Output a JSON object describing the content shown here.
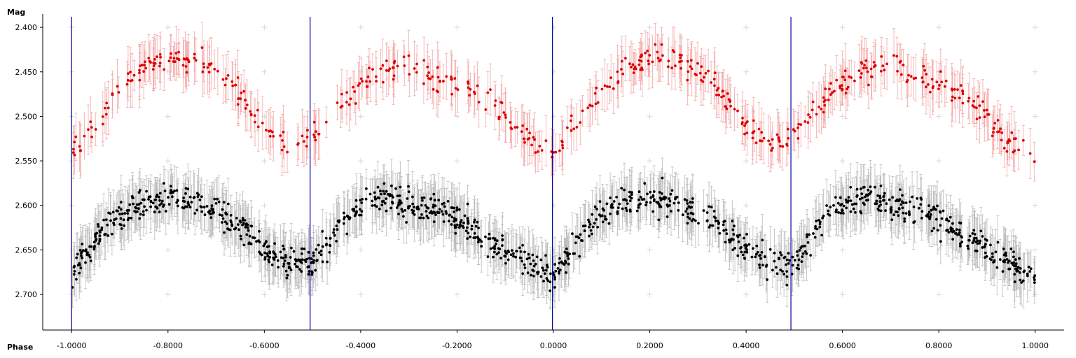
{
  "chart_data": {
    "type": "scatter",
    "xlabel": "Phase",
    "ylabel": "Mag",
    "xlim": [
      -1.06,
      1.06
    ],
    "ylim": [
      2.385,
      2.74
    ],
    "y_inverted": true,
    "x_ticks": [
      "-1.0000",
      "-0.8000",
      "-0.6000",
      "-0.4000",
      "-0.2000",
      "0.0000",
      "0.2000",
      "0.4000",
      "0.6000",
      "0.8000",
      "1.0000"
    ],
    "x_tick_values": [
      -1.0,
      -0.8,
      -0.6,
      -0.4,
      -0.2,
      0.0,
      0.2,
      0.4,
      0.6,
      0.8,
      1.0
    ],
    "y_ticks": [
      "2.400",
      "2.450",
      "2.500",
      "2.550",
      "2.600",
      "2.650",
      "2.700"
    ],
    "y_tick_values": [
      2.4,
      2.45,
      2.5,
      2.55,
      2.6,
      2.65,
      2.7
    ],
    "vertical_lines": [
      -1.0,
      -0.505,
      -0.002,
      0.493
    ],
    "grid_markers": true,
    "series": [
      {
        "color": "#e00000",
        "errorbar_color": "#f4a8a8",
        "error": 0.028,
        "curve": {
          "x": [
            -1.0,
            -0.95,
            -0.9,
            -0.85,
            -0.8,
            -0.75,
            -0.7,
            -0.65,
            -0.6,
            -0.55,
            -0.5,
            -0.45,
            -0.4,
            -0.35,
            -0.3,
            -0.25,
            -0.2,
            -0.15,
            -0.1,
            -0.05,
            0.0,
            0.05,
            0.1,
            0.15,
            0.2,
            0.25,
            0.3,
            0.35,
            0.4,
            0.45,
            0.5,
            0.55,
            0.6,
            0.65,
            0.7,
            0.75,
            0.8,
            0.85,
            0.9,
            0.95,
            1.0
          ],
          "y": [
            2.545,
            2.505,
            2.47,
            2.443,
            2.435,
            2.435,
            2.448,
            2.475,
            2.513,
            2.535,
            2.52,
            2.487,
            2.463,
            2.448,
            2.443,
            2.455,
            2.465,
            2.475,
            2.5,
            2.53,
            2.545,
            2.505,
            2.47,
            2.443,
            2.435,
            2.435,
            2.448,
            2.475,
            2.513,
            2.535,
            2.52,
            2.487,
            2.463,
            2.448,
            2.443,
            2.455,
            2.465,
            2.475,
            2.5,
            2.53,
            2.545
          ]
        },
        "points": 560,
        "scatter": 0.014
      },
      {
        "color": "#000000",
        "errorbar_color": "#bdbdbd",
        "error": 0.028,
        "curve": {
          "x": [
            -1.0,
            -0.95,
            -0.9,
            -0.85,
            -0.8,
            -0.75,
            -0.7,
            -0.65,
            -0.6,
            -0.55,
            -0.5,
            -0.45,
            -0.4,
            -0.35,
            -0.3,
            -0.25,
            -0.2,
            -0.15,
            -0.1,
            -0.05,
            0.0,
            0.05,
            0.1,
            0.15,
            0.2,
            0.25,
            0.3,
            0.35,
            0.4,
            0.45,
            0.5,
            0.55,
            0.6,
            0.65,
            0.7,
            0.75,
            0.8,
            0.85,
            0.9,
            0.95,
            1.0
          ],
          "y": [
            2.68,
            2.64,
            2.61,
            2.598,
            2.59,
            2.597,
            2.608,
            2.625,
            2.65,
            2.665,
            2.665,
            2.625,
            2.6,
            2.59,
            2.6,
            2.605,
            2.615,
            2.635,
            2.65,
            2.665,
            2.68,
            2.64,
            2.61,
            2.598,
            2.59,
            2.597,
            2.608,
            2.625,
            2.65,
            2.665,
            2.665,
            2.625,
            2.6,
            2.59,
            2.6,
            2.605,
            2.615,
            2.635,
            2.65,
            2.665,
            2.68
          ]
        },
        "points": 1250,
        "scatter": 0.016
      }
    ]
  }
}
